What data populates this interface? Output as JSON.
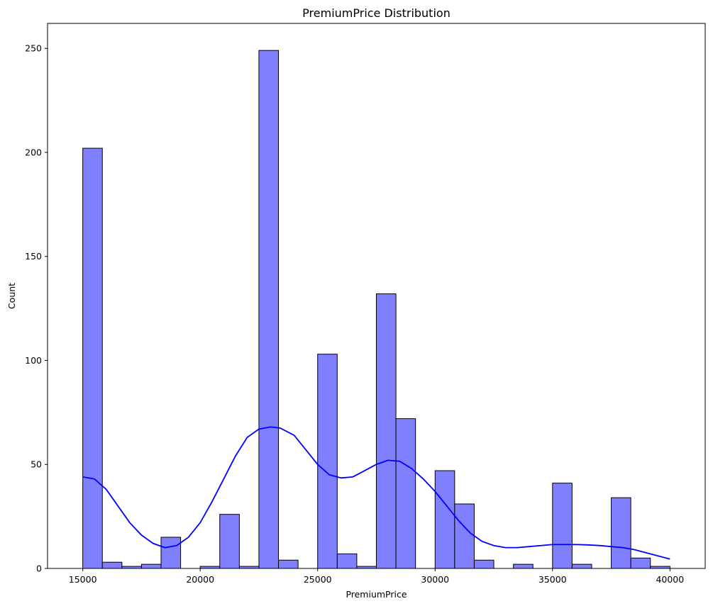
{
  "chart_data": {
    "type": "bar",
    "title": "PremiumPrice Distribution",
    "xlabel": "PremiumPrice",
    "ylabel": "Count",
    "xlim": [
      13500,
      41500
    ],
    "ylim": [
      0,
      262
    ],
    "xticks": [
      15000,
      20000,
      25000,
      30000,
      35000,
      40000
    ],
    "xtick_labels": [
      "15000",
      "20000",
      "25000",
      "30000",
      "35000",
      "40000"
    ],
    "yticks": [
      0,
      50,
      100,
      150,
      200,
      250
    ],
    "ytick_labels": [
      "0",
      "50",
      "100",
      "150",
      "200",
      "250"
    ],
    "bin_start": 15000,
    "bin_width": 833.33,
    "counts": [
      202,
      3,
      1,
      2,
      15,
      0,
      1,
      26,
      1,
      249,
      4,
      0,
      103,
      7,
      1,
      132,
      72,
      0,
      47,
      31,
      4,
      0,
      2,
      0,
      41,
      2,
      0,
      34,
      5,
      1
    ],
    "bar_fill": "#8080ff",
    "bar_edge": "#000000",
    "kde": {
      "name": "KDE",
      "color": "#0000ff",
      "x": [
        15000,
        15500,
        16000,
        16500,
        17000,
        17500,
        18000,
        18500,
        19000,
        19500,
        20000,
        20500,
        21000,
        21500,
        22000,
        22500,
        23000,
        23400,
        24000,
        24500,
        25000,
        25500,
        26000,
        26500,
        27000,
        27500,
        28000,
        28500,
        29000,
        29500,
        30000,
        30500,
        31000,
        31500,
        32000,
        32500,
        33000,
        33500,
        34000,
        34500,
        35000,
        35500,
        36000,
        36500,
        37000,
        37500,
        38000,
        38500,
        39000,
        39500,
        40000
      ],
      "y": [
        44,
        43,
        38,
        30,
        22,
        16,
        12,
        10,
        11,
        15,
        22,
        32,
        43,
        54,
        63,
        67,
        68,
        67.5,
        64,
        57,
        50,
        45,
        43.5,
        44,
        47,
        50,
        52,
        51.5,
        48,
        43,
        37,
        30,
        23,
        17,
        13,
        11,
        10,
        10,
        10.5,
        11,
        11.5,
        11.5,
        11.5,
        11.3,
        11,
        10.5,
        10,
        9,
        7.5,
        6,
        4.5
      ]
    }
  }
}
